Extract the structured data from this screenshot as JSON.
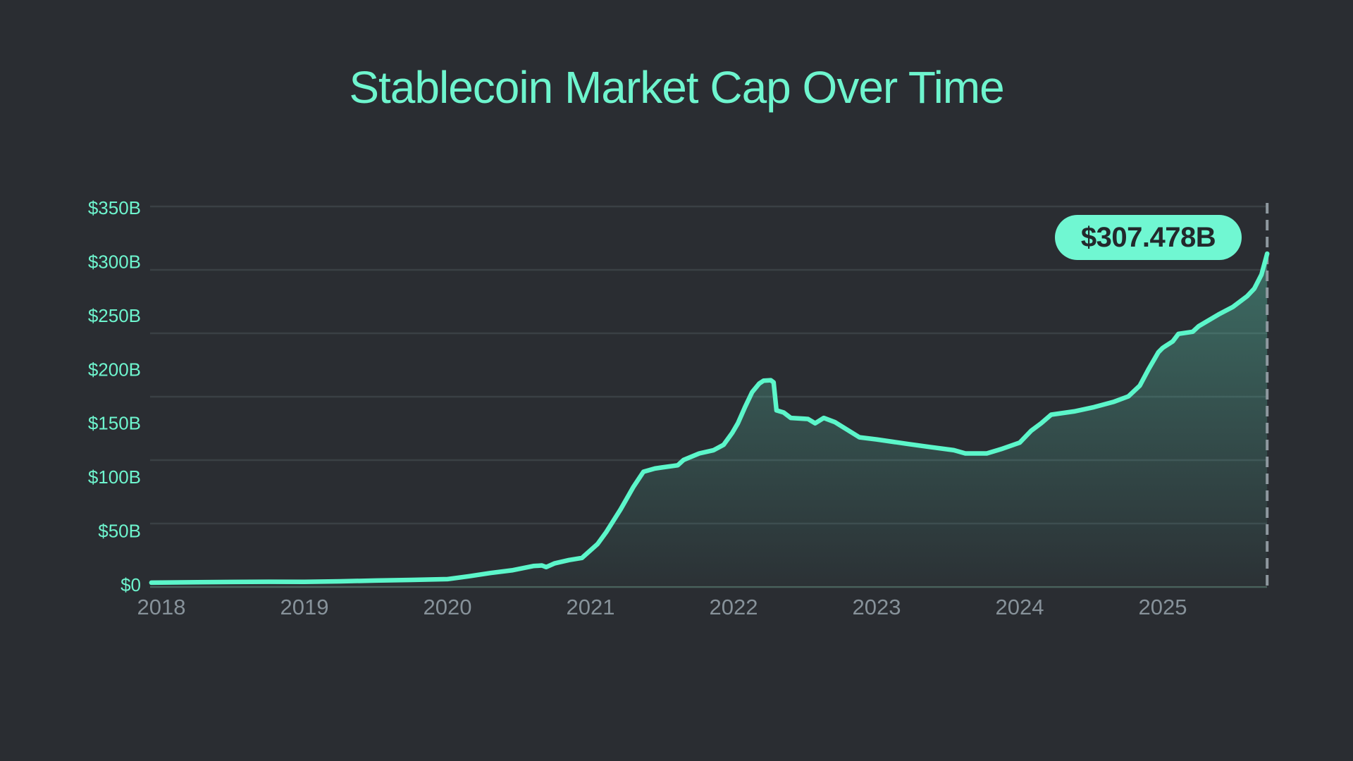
{
  "title": {
    "text": "Stablecoin Market Cap Over Time"
  },
  "badge": {
    "label": "$307.478B"
  },
  "colors": {
    "background": "#2A2D32",
    "accent": "#6EF5CE",
    "line": "#5CF6CA",
    "grid": "#3A4045",
    "zero_axis": "#49615C",
    "x_label": "#87929A",
    "badge_bg": "#70F7D2",
    "badge_text": "#23282C",
    "dashed_line": "#8E989F",
    "fill_top": "rgba(102,247,208,0.32)",
    "fill_bottom": "rgba(102,247,208,0.02)"
  },
  "chart_data": {
    "type": "area",
    "title": "Stablecoin Market Cap Over Time",
    "xlabel": "",
    "ylabel": "",
    "unit": "USD billions",
    "xlim": [
      2017.93,
      2025.78
    ],
    "ylim": [
      0,
      350
    ],
    "grid": "horizontal",
    "legend": "none",
    "x_ticks": [
      {
        "label": "2018",
        "year": 2018
      },
      {
        "label": "2019",
        "year": 2019
      },
      {
        "label": "2020",
        "year": 2020
      },
      {
        "label": "2021",
        "year": 2021
      },
      {
        "label": "2022",
        "year": 2022
      },
      {
        "label": "2023",
        "year": 2023
      },
      {
        "label": "2024",
        "year": 2024
      },
      {
        "label": "2025",
        "year": 2025
      }
    ],
    "y_ticks": [
      {
        "label": "$350B",
        "value": 350
      },
      {
        "label": "$300B",
        "value": 300
      },
      {
        "label": "$250B",
        "value": 250
      },
      {
        "label": "$200B",
        "value": 200
      },
      {
        "label": "$150B",
        "value": 150
      },
      {
        "label": "$100B",
        "value": 100
      },
      {
        "label": "$50B",
        "value": 50
      },
      {
        "label": "$0",
        "value": 0
      }
    ],
    "end_marker": {
      "type": "dashed-vertical-line",
      "x": 2025.73,
      "value": 307.478,
      "label": "$307.478B"
    },
    "series": [
      {
        "name": "Stablecoin Market Cap ($B)",
        "points": [
          [
            2017.93,
            2.0
          ],
          [
            2018.0,
            2.1
          ],
          [
            2018.25,
            2.4
          ],
          [
            2018.5,
            2.7
          ],
          [
            2018.75,
            2.9
          ],
          [
            2019.0,
            2.8
          ],
          [
            2019.25,
            3.3
          ],
          [
            2019.5,
            4.0
          ],
          [
            2019.75,
            4.6
          ],
          [
            2020.0,
            5.3
          ],
          [
            2020.15,
            8.0
          ],
          [
            2020.3,
            11.0
          ],
          [
            2020.45,
            13.5
          ],
          [
            2020.6,
            17.5
          ],
          [
            2020.66,
            18.0
          ],
          [
            2020.69,
            16.5
          ],
          [
            2020.75,
            20.0
          ],
          [
            2020.85,
            23.0
          ],
          [
            2020.94,
            25.0
          ],
          [
            2021.05,
            38.0
          ],
          [
            2021.11,
            49.0
          ],
          [
            2021.21,
            70.0
          ],
          [
            2021.3,
            91.0
          ],
          [
            2021.37,
            105.0
          ],
          [
            2021.45,
            108.0
          ],
          [
            2021.5,
            109.0
          ],
          [
            2021.61,
            111.0
          ],
          [
            2021.65,
            116.0
          ],
          [
            2021.76,
            122.0
          ],
          [
            2021.86,
            125.0
          ],
          [
            2021.93,
            130.0
          ],
          [
            2021.99,
            141.0
          ],
          [
            2022.03,
            150.0
          ],
          [
            2022.08,
            165.0
          ],
          [
            2022.13,
            179.0
          ],
          [
            2022.18,
            187.0
          ],
          [
            2022.21,
            189.5
          ],
          [
            2022.26,
            190.0
          ],
          [
            2022.28,
            188.0
          ],
          [
            2022.3,
            162.0
          ],
          [
            2022.35,
            160.0
          ],
          [
            2022.4,
            155.0
          ],
          [
            2022.52,
            154.0
          ],
          [
            2022.57,
            150.0
          ],
          [
            2022.63,
            155.0
          ],
          [
            2022.71,
            151.0
          ],
          [
            2022.88,
            137.0
          ],
          [
            2023.0,
            135.0
          ],
          [
            2023.21,
            131.0
          ],
          [
            2023.37,
            128.0
          ],
          [
            2023.54,
            125.0
          ],
          [
            2023.62,
            122.0
          ],
          [
            2023.77,
            122.0
          ],
          [
            2023.87,
            126.0
          ],
          [
            2024.0,
            132.0
          ],
          [
            2024.08,
            143.0
          ],
          [
            2024.15,
            150.0
          ],
          [
            2024.22,
            158.0
          ],
          [
            2024.38,
            161.0
          ],
          [
            2024.52,
            165.0
          ],
          [
            2024.66,
            170.0
          ],
          [
            2024.76,
            175.0
          ],
          [
            2024.84,
            185.0
          ],
          [
            2024.9,
            200.0
          ],
          [
            2024.97,
            216.0
          ],
          [
            2025.0,
            220.0
          ],
          [
            2025.07,
            226.0
          ],
          [
            2025.11,
            233.0
          ],
          [
            2025.21,
            235.0
          ],
          [
            2025.25,
            240.0
          ],
          [
            2025.39,
            251.0
          ],
          [
            2025.49,
            258.0
          ],
          [
            2025.59,
            268.0
          ],
          [
            2025.64,
            275.0
          ],
          [
            2025.69,
            288.0
          ],
          [
            2025.73,
            307.478
          ]
        ]
      }
    ]
  }
}
